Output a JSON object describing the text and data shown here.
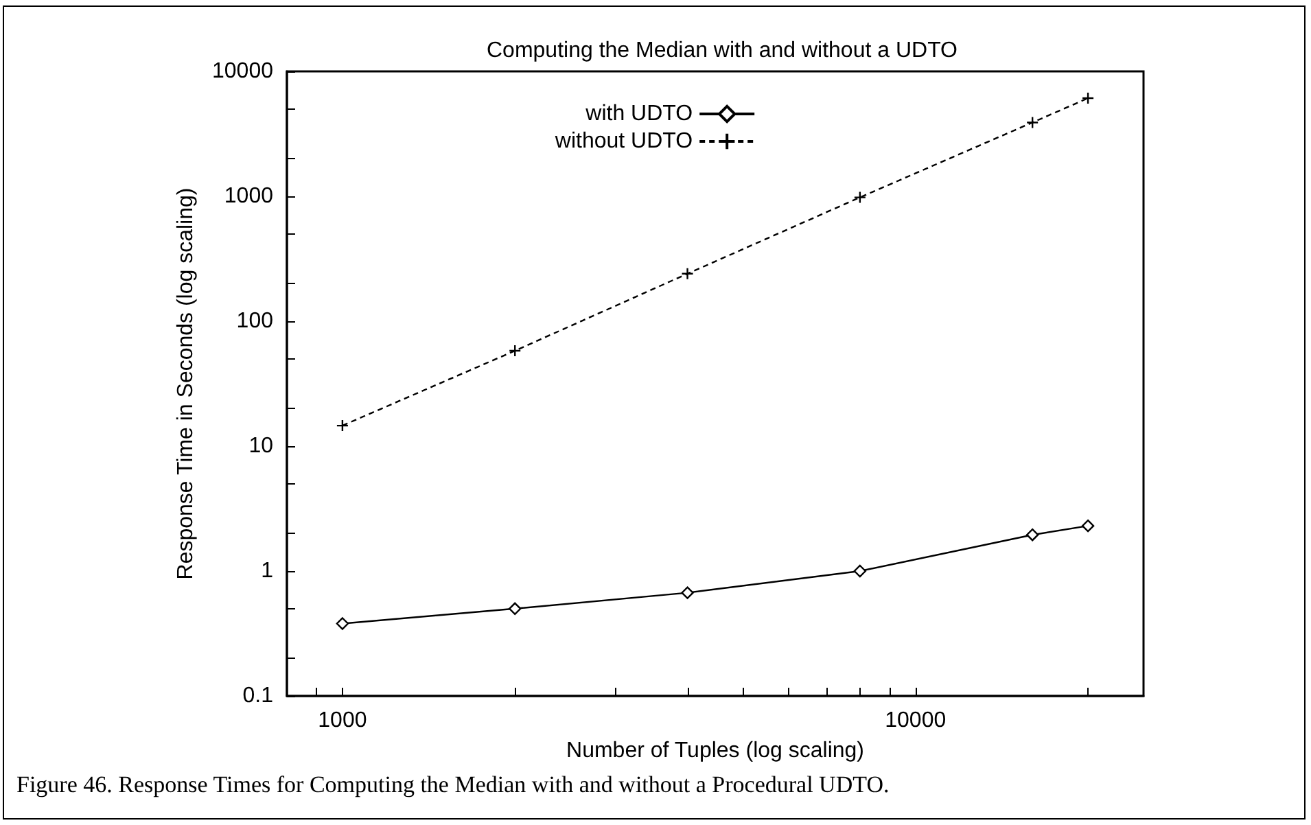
{
  "chart_data": {
    "type": "line",
    "title": "Computing the Median with and without a UDTO",
    "xlabel": "Number of Tuples (log scaling)",
    "ylabel": "Response Time in Seconds (log scaling)",
    "annotations": [
      "Figure 46. Response Times for Computing the Median with and without a Procedural UDTO."
    ],
    "log": "xy",
    "grid": false,
    "legend": "top",
    "xlim": [
      800,
      25000
    ],
    "xticks": [
      {
        "value": 900,
        "label": null
      },
      1000,
      {
        "value": 2000,
        "label": null
      },
      {
        "value": 3000,
        "label": null
      },
      {
        "value": 4000,
        "label": null
      },
      {
        "value": 5000,
        "label": null
      },
      {
        "value": 6000,
        "label": null
      },
      {
        "value": 7000,
        "label": null
      },
      {
        "value": 8000,
        "label": null
      },
      {
        "value": 9000,
        "label": null
      },
      10000,
      {
        "value": 20000,
        "label": null
      }
    ],
    "ylim": [
      0.1,
      10000
    ],
    "yticks": [
      0.1,
      {
        "value": 0.2,
        "label": null
      },
      {
        "value": 0.5,
        "label": null
      },
      1,
      {
        "value": 2,
        "label": null
      },
      {
        "value": 5,
        "label": null
      },
      10,
      {
        "value": 20,
        "label": null
      },
      {
        "value": 50,
        "label": null
      },
      100,
      {
        "value": 200,
        "label": null
      },
      {
        "value": 500,
        "label": null
      },
      1000,
      {
        "value": 2000,
        "label": null
      },
      {
        "value": 5000,
        "label": null
      },
      10000
    ],
    "x": [
      1000,
      2000,
      4000,
      8000,
      16000,
      20000
    ],
    "series": [
      {
        "name": "with UDTO",
        "color": "#000000",
        "marker": "diamond",
        "line_style": "solid",
        "values": [
          0.38,
          0.5,
          0.67,
          1.0,
          1.95,
          2.3
        ]
      },
      {
        "name": "without UDTO",
        "color": "#000000",
        "marker": "cross",
        "line_style": "dashed",
        "values": [
          14.6,
          58,
          240,
          980,
          3900,
          6100
        ]
      }
    ]
  }
}
